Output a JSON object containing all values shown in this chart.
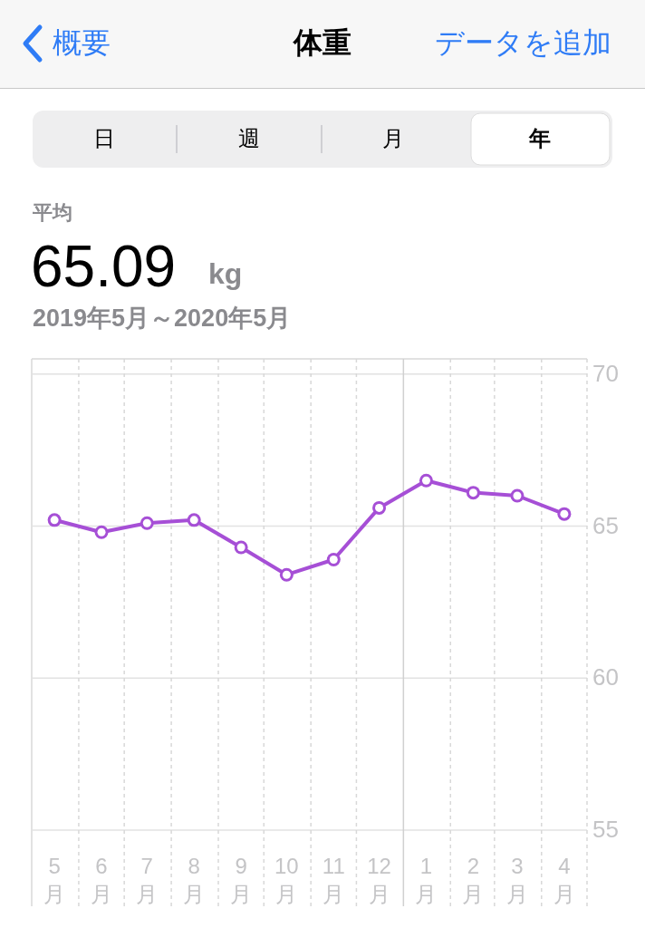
{
  "chart_data": {
    "type": "line",
    "title": "体重",
    "subtitle": "2019年5月～2020年5月",
    "annotations": [
      "概要",
      "データを追加",
      "日",
      "週",
      "月",
      "年",
      "平均",
      "65.09",
      "kg"
    ],
    "x": [
      "2019-05-16",
      "2019-06-16",
      "2019-07-16",
      "2019-08-16",
      "2019-09-16",
      "2019-10-16",
      "2019-11-16",
      "2019-12-16",
      "2020-01-16",
      "2020-02-16",
      "2020-03-16",
      "2020-04-16"
    ],
    "series": [
      {
        "color": "#a64fd6",
        "values": [
          65.2,
          64.8,
          65.1,
          65.2,
          64.3,
          63.4,
          63.9,
          65.6,
          66.5,
          66.1,
          66.0,
          65.4
        ]
      }
    ],
    "xlim": [
      "2019-05-01",
      "2020-05-01"
    ],
    "xticks": [
      {
        "value": "2019-05-16",
        "label": "5月"
      },
      {
        "value": "2019-06-16",
        "label": "6月"
      },
      {
        "value": "2019-07-16",
        "label": "7月"
      },
      {
        "value": "2019-08-16",
        "label": "8月"
      },
      {
        "value": "2019-09-16",
        "label": "9月"
      },
      {
        "value": "2019-10-16",
        "label": "10月"
      },
      {
        "value": "2019-11-16",
        "label": "11月"
      },
      {
        "value": "2019-12-16",
        "label": "12月"
      },
      {
        "value": "2020-01-16",
        "label": "1月"
      },
      {
        "value": "2020-02-16",
        "label": "2月"
      },
      {
        "value": "2020-03-16",
        "label": "3月"
      },
      {
        "value": "2020-04-16",
        "label": "4月"
      }
    ],
    "ylim": [
      52.5,
      70.5
    ],
    "yticks": [
      55,
      60,
      65,
      70
    ],
    "ref_lines": [
      {
        "axis": "x",
        "value": "2020-01-01",
        "label": null,
        "color": "#d0d0d0",
        "line_style": "solid"
      }
    ],
    "grid": true,
    "marker": "circle",
    "line_style": "solid"
  }
}
